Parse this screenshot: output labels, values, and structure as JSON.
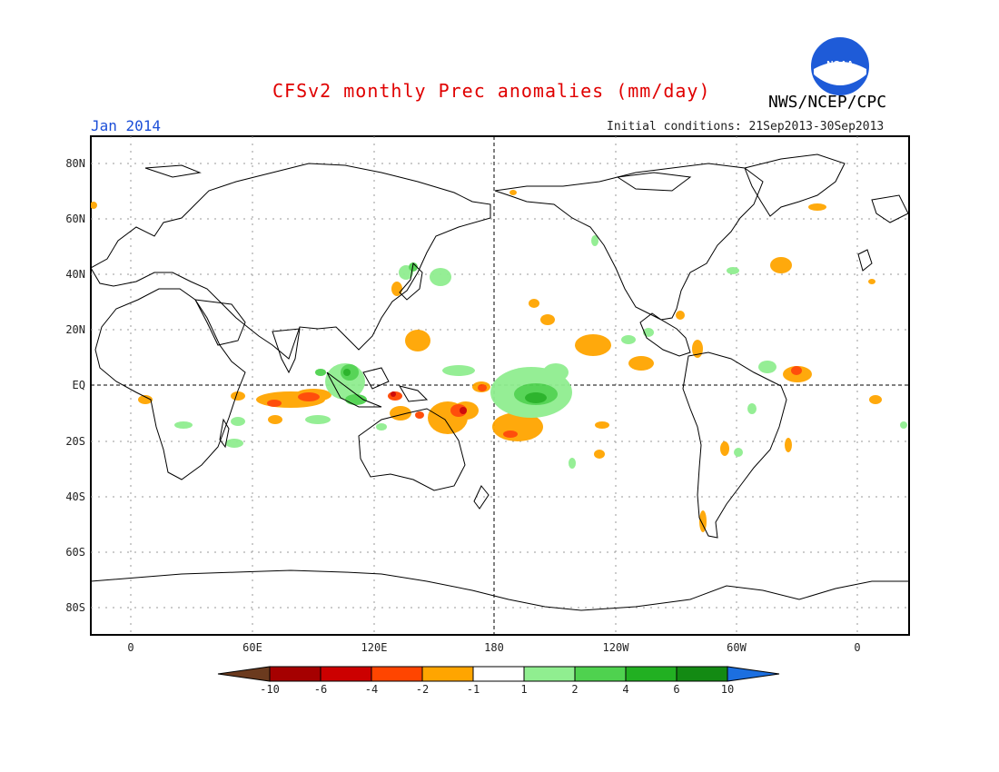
{
  "header": {
    "title": "CFSv2 monthly Prec anomalies (mm/day)",
    "agency": "NWS/NCEP/CPC",
    "valid_month": "Jan 2014",
    "initial_conditions": "Initial conditions: 21Sep2013-30Sep2013",
    "logo_text": "NOAA"
  },
  "axes": {
    "lat_labels": [
      "80N",
      "60N",
      "40N",
      "20N",
      "EQ",
      "20S",
      "40S",
      "60S",
      "80S"
    ],
    "lon_labels": [
      "0",
      "60E",
      "120E",
      "180",
      "120W",
      "60W",
      "0"
    ]
  },
  "colorbar": {
    "labels": [
      "-10",
      "-6",
      "-4",
      "-2",
      "-1",
      "1",
      "2",
      "4",
      "6",
      "10"
    ],
    "colors": [
      "#6b3a1e",
      "#a50000",
      "#cc0000",
      "#ff4500",
      "#ffa500",
      "#ffffff",
      "#90ee90",
      "#4fd24f",
      "#22b022",
      "#138a13",
      "#1c6fe0"
    ]
  },
  "colors": {
    "title": "#e00000",
    "valid": "#1c4fd8",
    "orange": "#ffa500",
    "red_orange": "#ff4500",
    "dark_red": "#cc0000",
    "light_green": "#90ee90",
    "green": "#4fd24f",
    "dark_green": "#22b022"
  }
}
